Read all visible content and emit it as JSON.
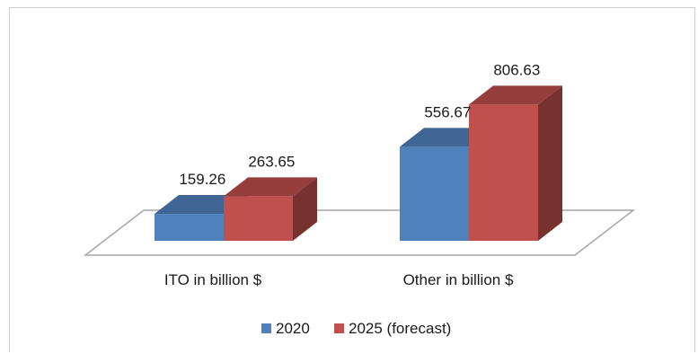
{
  "chart_data": {
    "type": "bar",
    "style": "3d-clustered-column",
    "categories": [
      "ITO in billion $",
      "Other in billion $"
    ],
    "series": [
      {
        "name": "2020",
        "values": [
          159.26,
          556.67
        ],
        "color": "#4f81bd"
      },
      {
        "name": "2025 (forecast)",
        "values": [
          263.65,
          806.63
        ],
        "color": "#c0504d"
      }
    ],
    "data_labels": true,
    "legend_position": "bottom",
    "grid": false
  }
}
